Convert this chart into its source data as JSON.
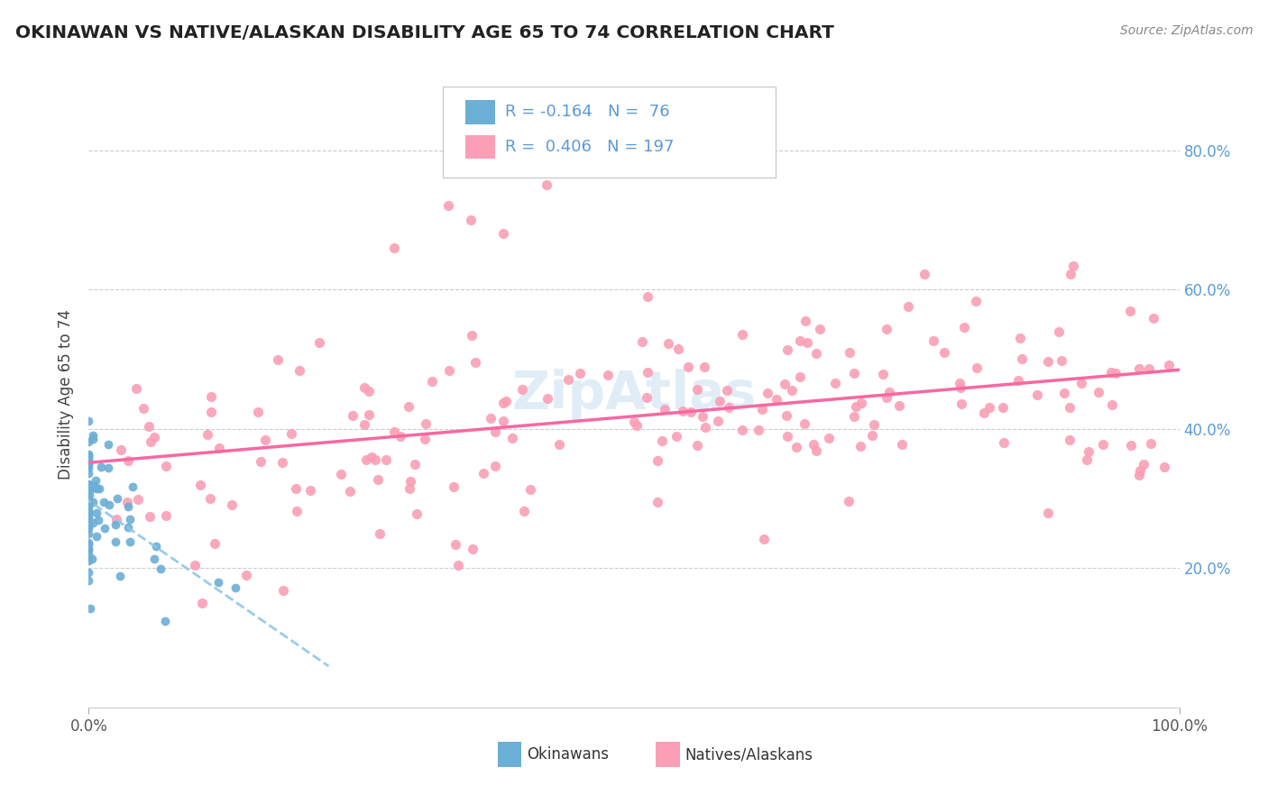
{
  "title": "OKINAWAN VS NATIVE/ALASKAN DISABILITY AGE 65 TO 74 CORRELATION CHART",
  "source": "Source: ZipAtlas.com",
  "ylabel": "Disability Age 65 to 74",
  "xlim": [
    0.0,
    1.0
  ],
  "ylim": [
    0.0,
    0.9
  ],
  "okinawan_color": "#6baed6",
  "native_color": "#fa9fb5",
  "okinawan_line_color": "#8ec6e8",
  "native_line_color": "#f768a1",
  "R_okinawan": -0.164,
  "N_okinawan": 76,
  "R_native": 0.406,
  "N_native": 197
}
